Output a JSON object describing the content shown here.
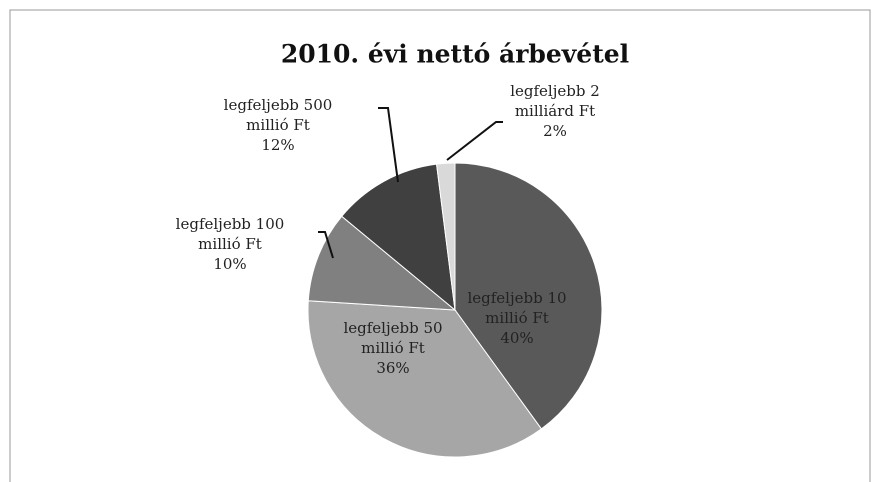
{
  "chart_data": {
    "type": "pie",
    "title": "2010. évi nettó árbevétel",
    "categories": [
      "legfeljebb 10 millió Ft",
      "legfeljebb 50 millió Ft",
      "legfeljebb 100 millió Ft",
      "legfeljebb 500 millió Ft",
      "legfeljebb 2 milliárd Ft"
    ],
    "values": [
      40,
      36,
      10,
      12,
      2
    ],
    "value_labels": [
      "40%",
      "36%",
      "10%",
      "12%",
      "2%"
    ],
    "colors": [
      "#595959",
      "#a6a6a6",
      "#808080",
      "#404040",
      "#d9d9d9"
    ]
  }
}
